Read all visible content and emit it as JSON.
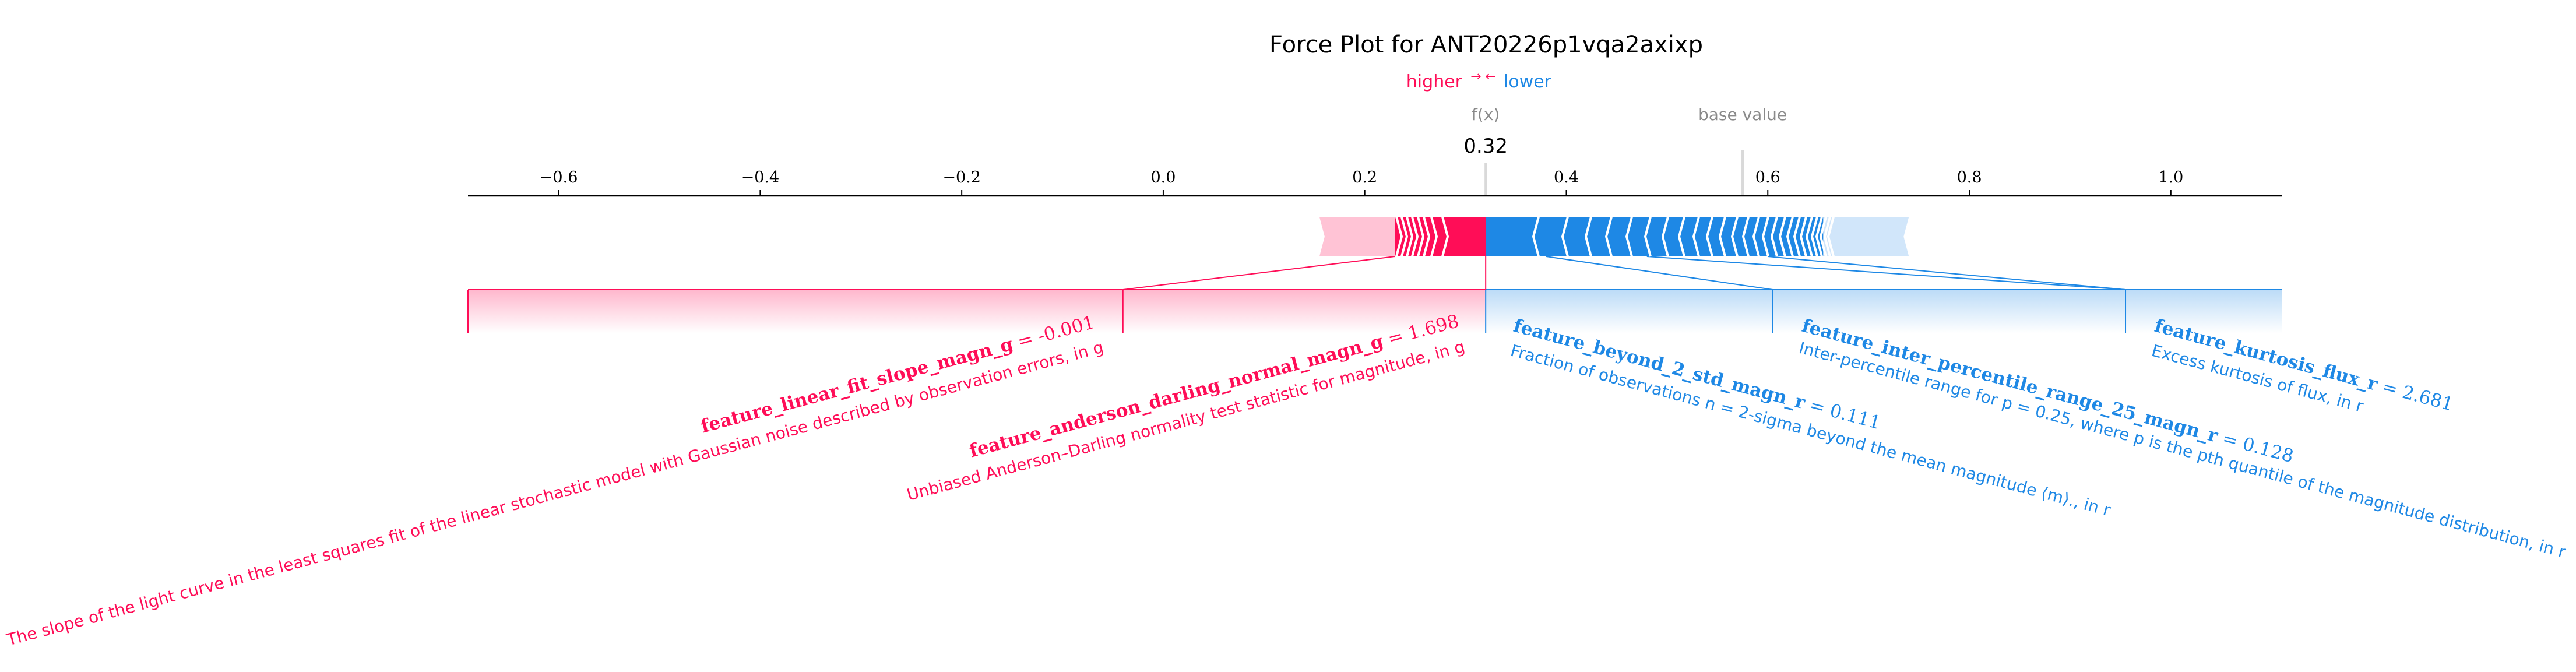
{
  "colors": {
    "positive": "#ff0d57",
    "negative": "#1e88e5",
    "positive_light": "#ffc3d5",
    "negative_light": "#d1e6fa",
    "axis": "#000000",
    "marker": "#8a8a8a"
  },
  "chart_data": {
    "type": "force-plot",
    "title": "Force Plot for ANT20226p1vqa2axixp",
    "legend": {
      "higher": "higher",
      "lower": "lower",
      "arrows": "→\n←"
    },
    "output_label": "f(x)",
    "output_value_label": "0.32",
    "base_value_label": "base value",
    "output_value": 0.32,
    "base_value": 0.575,
    "xlim": [
      -0.69,
      1.11
    ],
    "xticks": [
      -0.6,
      -0.4,
      -0.2,
      0.0,
      0.2,
      0.4,
      0.6,
      0.8,
      1.0
    ],
    "xtick_labels": [
      "−0.6",
      "−0.4",
      "−0.2",
      "0.0",
      "0.2",
      "0.4",
      "0.6",
      "0.8",
      "1.0"
    ],
    "bar_extent": [
      0.155,
      0.74
    ],
    "highlighted_positive": [
      0.23,
      0.32
    ],
    "highlighted_negative": [
      0.32,
      0.655
    ],
    "positive_features": [
      {
        "name": "feature_linear_fit_slope_magn_g",
        "value_text": " = -0.001",
        "description": "The slope of the light curve in the least squares fit of the linear stochastic model with Gaussian noise described by observation errors, in g",
        "start": -0.69,
        "end": -0.04
      },
      {
        "name": "feature_anderson_darling_normal_magn_g",
        "value_text": " = 1.698",
        "description": "Unbiased Anderson–Darling normality test statistic for magnitude, in g",
        "start": -0.04,
        "end": 0.32
      }
    ],
    "negative_features": [
      {
        "name": "feature_beyond_2_std_magn_r",
        "value_text": " = 0.111",
        "description": "Fraction of observations n = 2-sigma beyond the mean magnitude ⟨m⟩., in r",
        "start": 0.32,
        "end": 0.605
      },
      {
        "name": "feature_inter_percentile_range_25_magn_r",
        "value_text": " = 0.128",
        "description": "Inter-percentile range for p = 0.25, where p is the pth quantile of the magnitude distribution, in r",
        "start": 0.605,
        "end": 0.955
      },
      {
        "name": "feature_kurtosis_flux_r",
        "value_text": " = 2.681",
        "description": "Excess kurtosis of flux, in r",
        "start": 0.955,
        "end": 1.11
      }
    ]
  }
}
